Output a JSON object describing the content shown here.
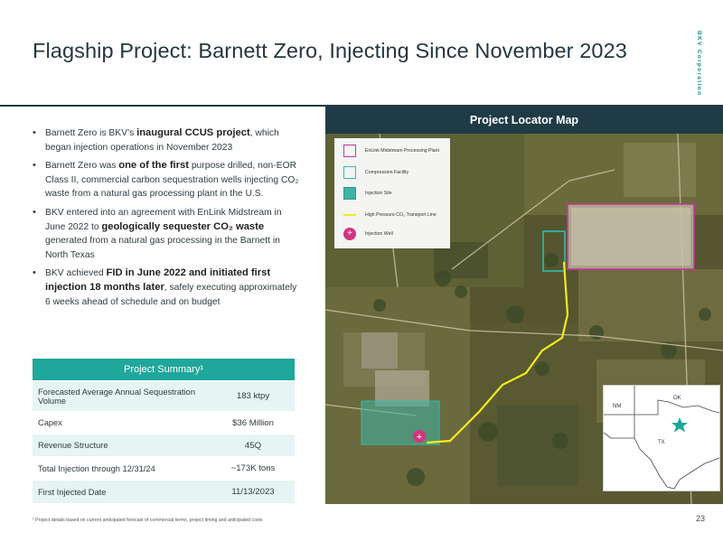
{
  "header": {
    "title": "Flagship Project: Barnett Zero, Injecting Since November 2023",
    "corp_label": "BKV Corporation"
  },
  "bullets": [
    {
      "pre": "Barnett Zero is BKV’s ",
      "bold": "inaugural CCUS project",
      "post": ", which began injection operations in November 2023"
    },
    {
      "pre": "Barnett Zero was ",
      "bold": "one of the first",
      "post": " purpose drilled, non-EOR Class II, commercial carbon sequestration wells injecting CO₂ waste from a natural gas processing plant in the U.S."
    },
    {
      "pre": "BKV entered into an agreement with EnLink Midstream in June 2022 to ",
      "bold": "geologically sequester CO₂ waste",
      "post": " generated from a natural gas processing in the Barnett in North Texas"
    },
    {
      "pre": "BKV achieved ",
      "bold": "FID in June 2022 and initiated first injection 18 months later",
      "post": ", safely executing approximately 6 weeks ahead of schedule and on budget"
    }
  ],
  "summary": {
    "title": "Project Summary¹",
    "rows": [
      {
        "label": "Forecasted Average Annual Sequestration Volume",
        "value": "183 ktpy"
      },
      {
        "label": "Capex",
        "value": "$36 Million"
      },
      {
        "label": "Revenue Structure",
        "value": "45Q"
      },
      {
        "label": "Total Injection through 12/31/24",
        "value": "~173K tons"
      },
      {
        "label": "First Injected Date",
        "value": "11/13/2023"
      }
    ]
  },
  "map": {
    "title": "Project Locator Map",
    "legend": [
      {
        "label": "EnLink Midstream Processing Plant",
        "icon": "square-outline-magenta"
      },
      {
        "label": "Compression Facility",
        "icon": "square-outline-teal"
      },
      {
        "label": "Injection Site",
        "icon": "square-filled-teal"
      },
      {
        "label": "High Pressure CO₂ Transport Line",
        "icon": "line-yellow"
      },
      {
        "label": "Injection Well",
        "icon": "plus-circle-magenta"
      }
    ],
    "inset": {
      "nm": "NM",
      "ok": "OK",
      "tx": "TX"
    },
    "colors": {
      "plant": "#c2389b",
      "compression": "#2fbfad",
      "injection_site": "#3fb3a4",
      "pipeline": "#f2ec1a",
      "well": "#d2367c",
      "star": "#1fa79b"
    }
  },
  "footnote": "¹ Project details based on current anticipated forecast of commercial terms, project timing and anticipated costs",
  "page_number": "23"
}
